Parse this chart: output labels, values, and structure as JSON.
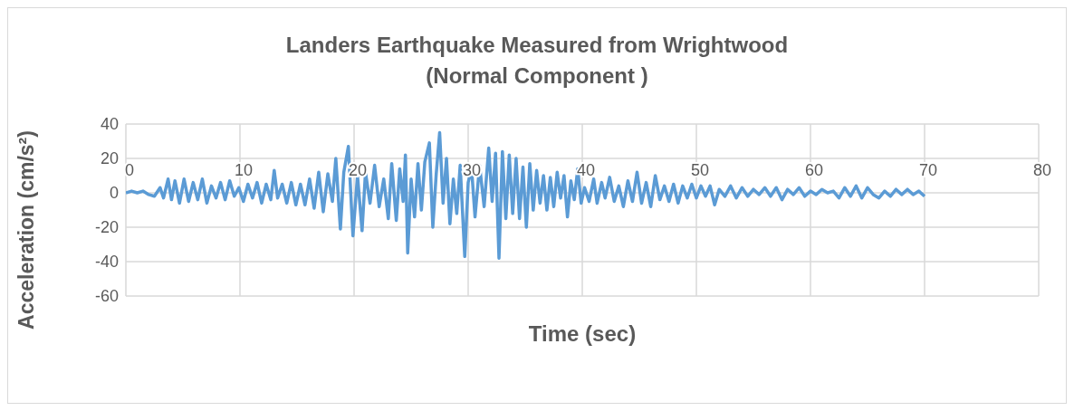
{
  "chart_data": {
    "type": "line",
    "title": "Landers Earthquake Measured from Wrightwood (Normal Component )",
    "xlabel": "Time (sec)",
    "ylabel": "Acceleration (cm/s²)",
    "xlim": [
      0,
      80
    ],
    "xticks": [
      0,
      10,
      20,
      30,
      40,
      50,
      60,
      70,
      80
    ],
    "ylim": [
      -60,
      40
    ],
    "yticks": [
      -60,
      -40,
      -20,
      0,
      20,
      40
    ],
    "grid": true,
    "legend": false,
    "marker": "none",
    "line_style": "solid",
    "series": [
      {
        "color": "#5b9bd5",
        "x": [
          0,
          0.5,
          1,
          1.5,
          2,
          2.5,
          3,
          3.3,
          3.7,
          4,
          4.3,
          4.7,
          5.1,
          5.5,
          5.9,
          6.3,
          6.7,
          7.1,
          7.5,
          7.9,
          8.3,
          8.7,
          9.1,
          9.5,
          9.9,
          10.3,
          10.7,
          11.1,
          11.5,
          11.9,
          12.3,
          12.7,
          13,
          13.3,
          13.7,
          14.1,
          14.5,
          14.9,
          15.3,
          15.7,
          16.1,
          16.5,
          16.9,
          17.3,
          17.7,
          18.1,
          18.4,
          18.8,
          19.1,
          19.5,
          19.9,
          20.3,
          20.7,
          21,
          21.4,
          21.8,
          22.2,
          22.6,
          23,
          23.3,
          23.7,
          24,
          24.3,
          24.5,
          24.7,
          25,
          25.3,
          25.6,
          25.9,
          26.2,
          26.6,
          26.9,
          27.2,
          27.5,
          27.8,
          28.1,
          28.4,
          28.7,
          29,
          29.3,
          29.7,
          30,
          30.3,
          30.6,
          31,
          31.4,
          31.8,
          32.1,
          32.4,
          32.7,
          33,
          33.3,
          33.6,
          33.9,
          34.2,
          34.5,
          34.8,
          35.1,
          35.4,
          35.7,
          36,
          36.3,
          36.6,
          36.9,
          37.2,
          37.5,
          37.8,
          38.1,
          38.4,
          38.7,
          39,
          39.3,
          39.6,
          39.9,
          40.2,
          40.6,
          41,
          41.3,
          41.7,
          42,
          42.4,
          42.8,
          43.2,
          43.6,
          44,
          44.4,
          44.8,
          45.2,
          45.6,
          46,
          46.4,
          46.8,
          47.2,
          47.6,
          48,
          48.4,
          48.8,
          49.2,
          49.6,
          50,
          50.4,
          50.8,
          51.2,
          51.6,
          52,
          52.5,
          53,
          53.5,
          54,
          54.5,
          55,
          55.5,
          56,
          56.5,
          57,
          57.5,
          58,
          58.5,
          59,
          59.5,
          60,
          60.5,
          61,
          61.5,
          62,
          62.5,
          63,
          63.5,
          64,
          64.5,
          65,
          65.5,
          66,
          66.5,
          67,
          67.5,
          68,
          68.5,
          69,
          69.5,
          70
        ],
        "values": [
          0,
          1,
          0,
          1,
          -1,
          -2,
          3,
          -3,
          8,
          -4,
          7,
          -6,
          8,
          -5,
          6,
          -4,
          8,
          -6,
          4,
          -3,
          6,
          -4,
          7,
          -2,
          3,
          -5,
          5,
          -3,
          6,
          -6,
          5,
          -4,
          13,
          -3,
          5,
          -6,
          6,
          -7,
          5,
          -7,
          8,
          -9,
          12,
          -11,
          11,
          -5,
          20,
          -21,
          12,
          27,
          -25,
          10,
          -22,
          12,
          -6,
          16,
          -8,
          8,
          -15,
          17,
          -16,
          14,
          -5,
          22,
          -35,
          8,
          -14,
          17,
          -10,
          18,
          29,
          -20,
          11,
          35,
          -6,
          20,
          -18,
          8,
          -12,
          16,
          -37,
          6,
          14,
          -14,
          16,
          -8,
          26,
          -5,
          23,
          -38,
          24,
          -15,
          22,
          -12,
          20,
          -15,
          15,
          -20,
          17,
          -10,
          13,
          -6,
          10,
          -10,
          9,
          -8,
          12,
          -3,
          10,
          -14,
          7,
          -4,
          14,
          -6,
          3,
          -5,
          8,
          -6,
          6,
          -3,
          9,
          -5,
          4,
          -8,
          7,
          -5,
          12,
          -6,
          6,
          -8,
          10,
          -4,
          4,
          -5,
          5,
          -6,
          4,
          -3,
          5,
          -3,
          4,
          -2,
          4,
          -7,
          2,
          -2,
          4,
          -3,
          3,
          -2,
          2,
          -1,
          3,
          -2,
          3,
          -4,
          2,
          -1,
          3,
          -2,
          1,
          -1,
          2,
          0,
          1,
          -3,
          3,
          -2,
          4,
          -3,
          3,
          -1,
          -3,
          1,
          -2,
          2,
          -1,
          2,
          -1,
          1,
          -2
        ]
      }
    ]
  }
}
